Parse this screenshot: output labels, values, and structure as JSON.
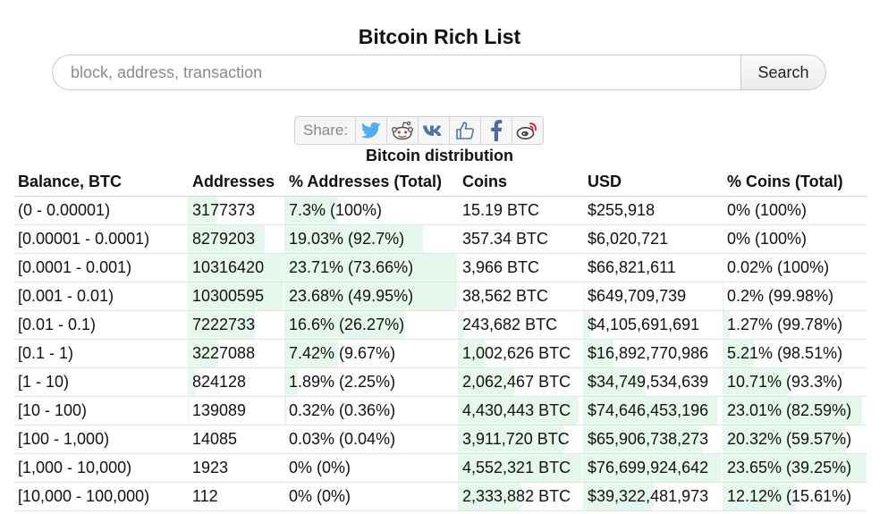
{
  "page_title": "Bitcoin Rich List",
  "search": {
    "placeholder": "block, address, transaction",
    "button_label": "Search"
  },
  "share": {
    "label": "Share:",
    "buttons": [
      "twitter-icon",
      "reddit-icon",
      "vk-icon",
      "thumbs-up-icon",
      "facebook-icon",
      "weibo-icon"
    ]
  },
  "table_title": "Bitcoin distribution",
  "bar_color": "#e6f8ee",
  "columns": [
    "Balance, BTC",
    "Addresses",
    "% Addresses (Total)",
    "Coins",
    "USD",
    "% Coins (Total)"
  ],
  "rows": [
    {
      "balance": "(0 - 0.00001)",
      "addresses": "3177373",
      "pct_addresses": "7.3% (100%)",
      "coins": "15.19 BTC",
      "usd": "$255,918",
      "pct_coins": "0% (100%)"
    },
    {
      "balance": "[0.00001 - 0.0001)",
      "addresses": "8279203",
      "pct_addresses": "19.03% (92.7%)",
      "coins": "357.34 BTC",
      "usd": "$6,020,721",
      "pct_coins": "0% (100%)"
    },
    {
      "balance": "[0.0001 - 0.001)",
      "addresses": "10316420",
      "pct_addresses": "23.71% (73.66%)",
      "coins": "3,966 BTC",
      "usd": "$66,821,611",
      "pct_coins": "0.02% (100%)"
    },
    {
      "balance": "[0.001 - 0.01)",
      "addresses": "10300595",
      "pct_addresses": "23.68% (49.95%)",
      "coins": "38,562 BTC",
      "usd": "$649,709,739",
      "pct_coins": "0.2% (99.98%)"
    },
    {
      "balance": "[0.01 - 0.1)",
      "addresses": "7222733",
      "pct_addresses": "16.6% (26.27%)",
      "coins": "243,682 BTC",
      "usd": "$4,105,691,691",
      "pct_coins": "1.27% (99.78%)"
    },
    {
      "balance": "[0.1 - 1)",
      "addresses": "3227088",
      "pct_addresses": "7.42% (9.67%)",
      "coins": "1,002,626 BTC",
      "usd": "$16,892,770,986",
      "pct_coins": "5.21% (98.51%)"
    },
    {
      "balance": "[1 - 10)",
      "addresses": "824128",
      "pct_addresses": "1.89% (2.25%)",
      "coins": "2,062,467 BTC",
      "usd": "$34,749,534,639",
      "pct_coins": "10.71% (93.3%)"
    },
    {
      "balance": "[10 - 100)",
      "addresses": "139089",
      "pct_addresses": "0.32% (0.36%)",
      "coins": "4,430,443 BTC",
      "usd": "$74,646,453,196",
      "pct_coins": "23.01% (82.59%)"
    },
    {
      "balance": "[100 - 1,000)",
      "addresses": "14085",
      "pct_addresses": "0.03% (0.04%)",
      "coins": "3,911,720 BTC",
      "usd": "$65,906,738,273",
      "pct_coins": "20.32% (59.57%)"
    },
    {
      "balance": "[1,000 - 10,000)",
      "addresses": "1923",
      "pct_addresses": "0% (0%)",
      "coins": "4,552,321 BTC",
      "usd": "$76,699,924,642",
      "pct_coins": "23.65% (39.25%)"
    },
    {
      "balance": "[10,000 - 100,000)",
      "addresses": "112",
      "pct_addresses": "0% (0%)",
      "coins": "2,333,882 BTC",
      "usd": "$39,322,481,973",
      "pct_coins": "12.12% (15.61%)"
    }
  ]
}
